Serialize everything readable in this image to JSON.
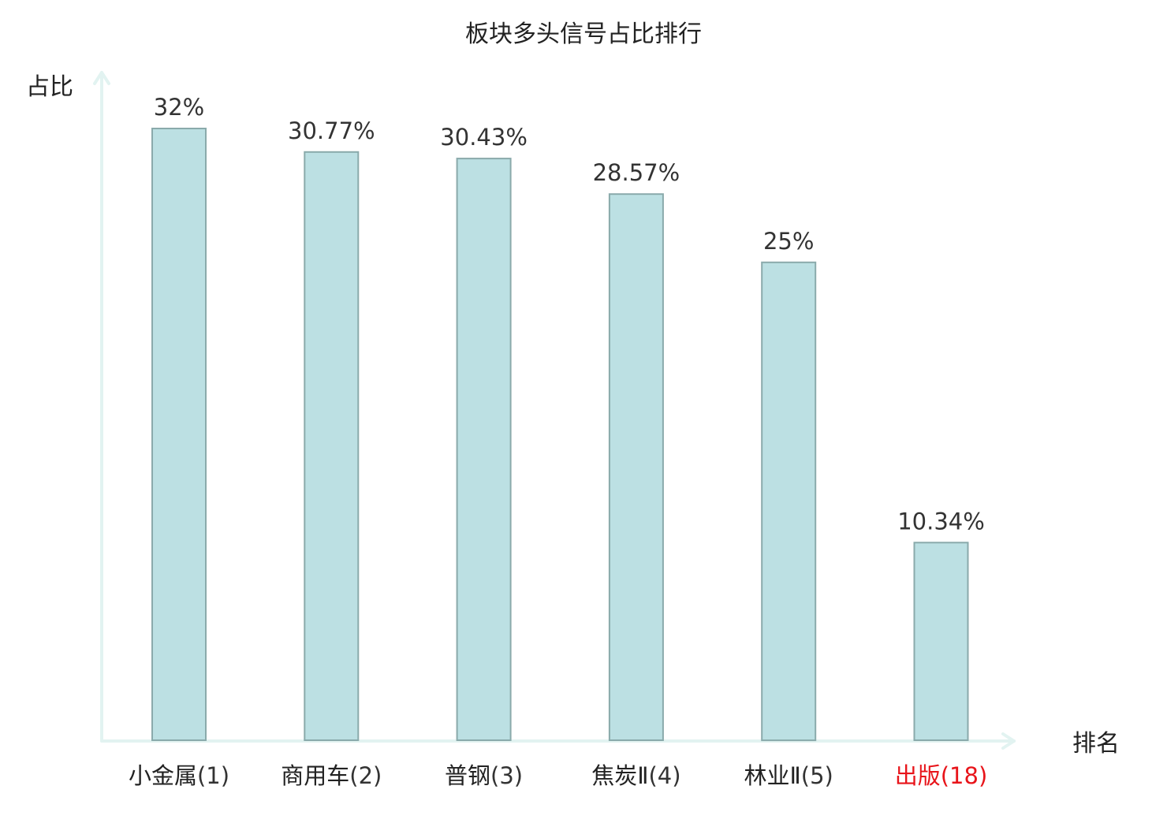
{
  "chart_data": {
    "type": "bar",
    "title": "板块多头信号占比排行",
    "xlabel": "排名",
    "ylabel": "占比",
    "categories": [
      {
        "name": "小金属",
        "rank": "(1)",
        "highlight": false
      },
      {
        "name": "商用车",
        "rank": "(2)",
        "highlight": false
      },
      {
        "name": "普钢",
        "rank": "(3)",
        "highlight": false
      },
      {
        "name": "焦炭Ⅱ",
        "rank": "(4)",
        "highlight": false
      },
      {
        "name": "林业Ⅱ",
        "rank": "(5)",
        "highlight": false
      },
      {
        "name": "出版",
        "rank": "(18)",
        "highlight": true
      }
    ],
    "values": [
      32,
      30.77,
      30.43,
      28.57,
      25,
      10.34
    ],
    "value_labels": [
      "32%",
      "30.77%",
      "30.43%",
      "28.57%",
      "25%",
      "10.34%"
    ],
    "ylim": [
      0,
      32
    ],
    "grid": false,
    "legend": "none"
  },
  "colors": {
    "bar_fill": "#bce0e3",
    "bar_stroke": "#8aaaab",
    "axis": "#e2f3f1",
    "text": "#333333",
    "label_text": "#222222",
    "highlight": "#e8141a"
  }
}
